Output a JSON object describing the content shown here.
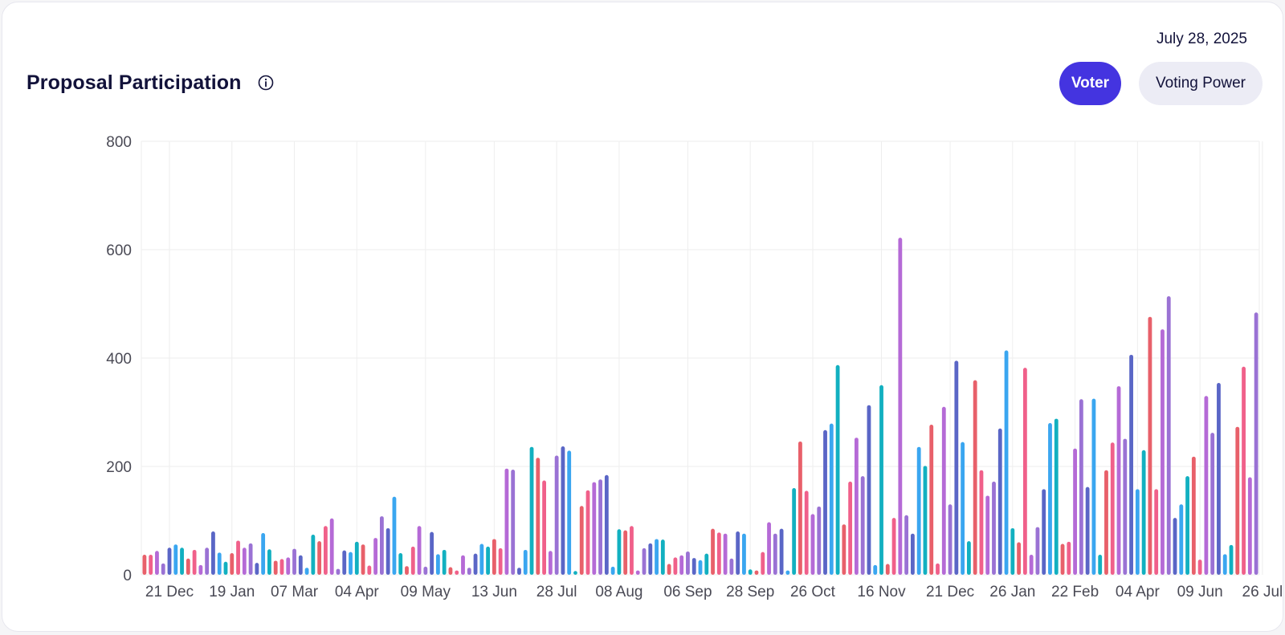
{
  "header": {
    "title": "Proposal Participation",
    "date": "July 28, 2025",
    "info_icon": "info-circle-icon"
  },
  "toggles": {
    "voter_label": "Voter",
    "voting_power_label": "Voting Power",
    "active": "Voter"
  },
  "colors": {
    "accent": "#4434e0",
    "toggle_inactive_bg": "#ececf5",
    "title_text": "#12123a",
    "axis_text": "#4a4a55",
    "grid": "#eeeeee",
    "bar_palette": [
      "#e8606a",
      "#f0608a",
      "#b56ad6",
      "#9a72d4",
      "#5a66c6",
      "#3aa6f0",
      "#12b0c0"
    ]
  },
  "chart_data": {
    "type": "bar",
    "title": "Proposal Participation",
    "xlabel": "",
    "ylabel": "",
    "ylim": [
      0,
      800
    ],
    "y_ticks": [
      0,
      200,
      400,
      600,
      800
    ],
    "x_tick_labels": [
      "21 Dec",
      "19 Jan",
      "07 Mar",
      "04 Apr",
      "09 May",
      "13 Jun",
      "28 Jul",
      "08 Aug",
      "06 Sep",
      "28 Sep",
      "26 Oct",
      "16 Nov",
      "21 Dec",
      "26 Jan",
      "22 Feb",
      "04 Apr",
      "09 Jun",
      "26 Jul"
    ],
    "x_tick_bar_index": [
      4,
      14,
      24,
      34,
      45,
      56,
      66,
      76,
      87,
      97,
      107,
      118,
      129,
      139,
      149,
      159,
      169,
      179
    ],
    "grid": true,
    "legend": "none",
    "values": [
      37,
      37,
      44,
      21,
      50,
      56,
      50,
      30,
      46,
      18,
      50,
      80,
      41,
      24,
      40,
      63,
      50,
      58,
      22,
      77,
      47,
      26,
      29,
      32,
      48,
      36,
      13,
      74,
      62,
      90,
      104,
      11,
      45,
      42,
      61,
      56,
      17,
      68,
      108,
      86,
      144,
      40,
      16,
      52,
      90,
      15,
      79,
      38,
      46,
      14,
      8,
      36,
      13,
      39,
      57,
      52,
      66,
      49,
      196,
      194,
      13,
      46,
      236,
      216,
      174,
      44,
      220,
      237,
      229,
      7,
      127,
      156,
      171,
      176,
      184,
      15,
      84,
      82,
      90,
      8,
      49,
      58,
      66,
      65,
      20,
      32,
      36,
      43,
      31,
      27,
      39,
      85,
      78,
      76,
      30,
      80,
      76,
      10,
      8,
      42,
      97,
      76,
      85,
      8,
      160,
      246,
      155,
      112,
      126,
      267,
      279,
      387,
      93,
      172,
      253,
      182,
      313,
      18,
      350,
      20,
      105,
      622,
      110,
      76,
      236,
      201,
      277,
      21,
      310,
      130,
      395,
      245,
      62,
      359,
      193,
      146,
      172,
      270,
      414,
      86,
      60,
      382,
      37,
      88,
      158,
      280,
      288,
      57,
      61,
      233,
      324,
      162,
      325,
      37,
      193,
      244,
      348,
      251,
      406,
      158,
      230,
      476,
      158,
      453,
      514,
      105,
      130,
      182,
      218,
      28,
      330,
      262,
      354,
      38,
      55,
      273,
      384,
      180,
      484
    ]
  }
}
